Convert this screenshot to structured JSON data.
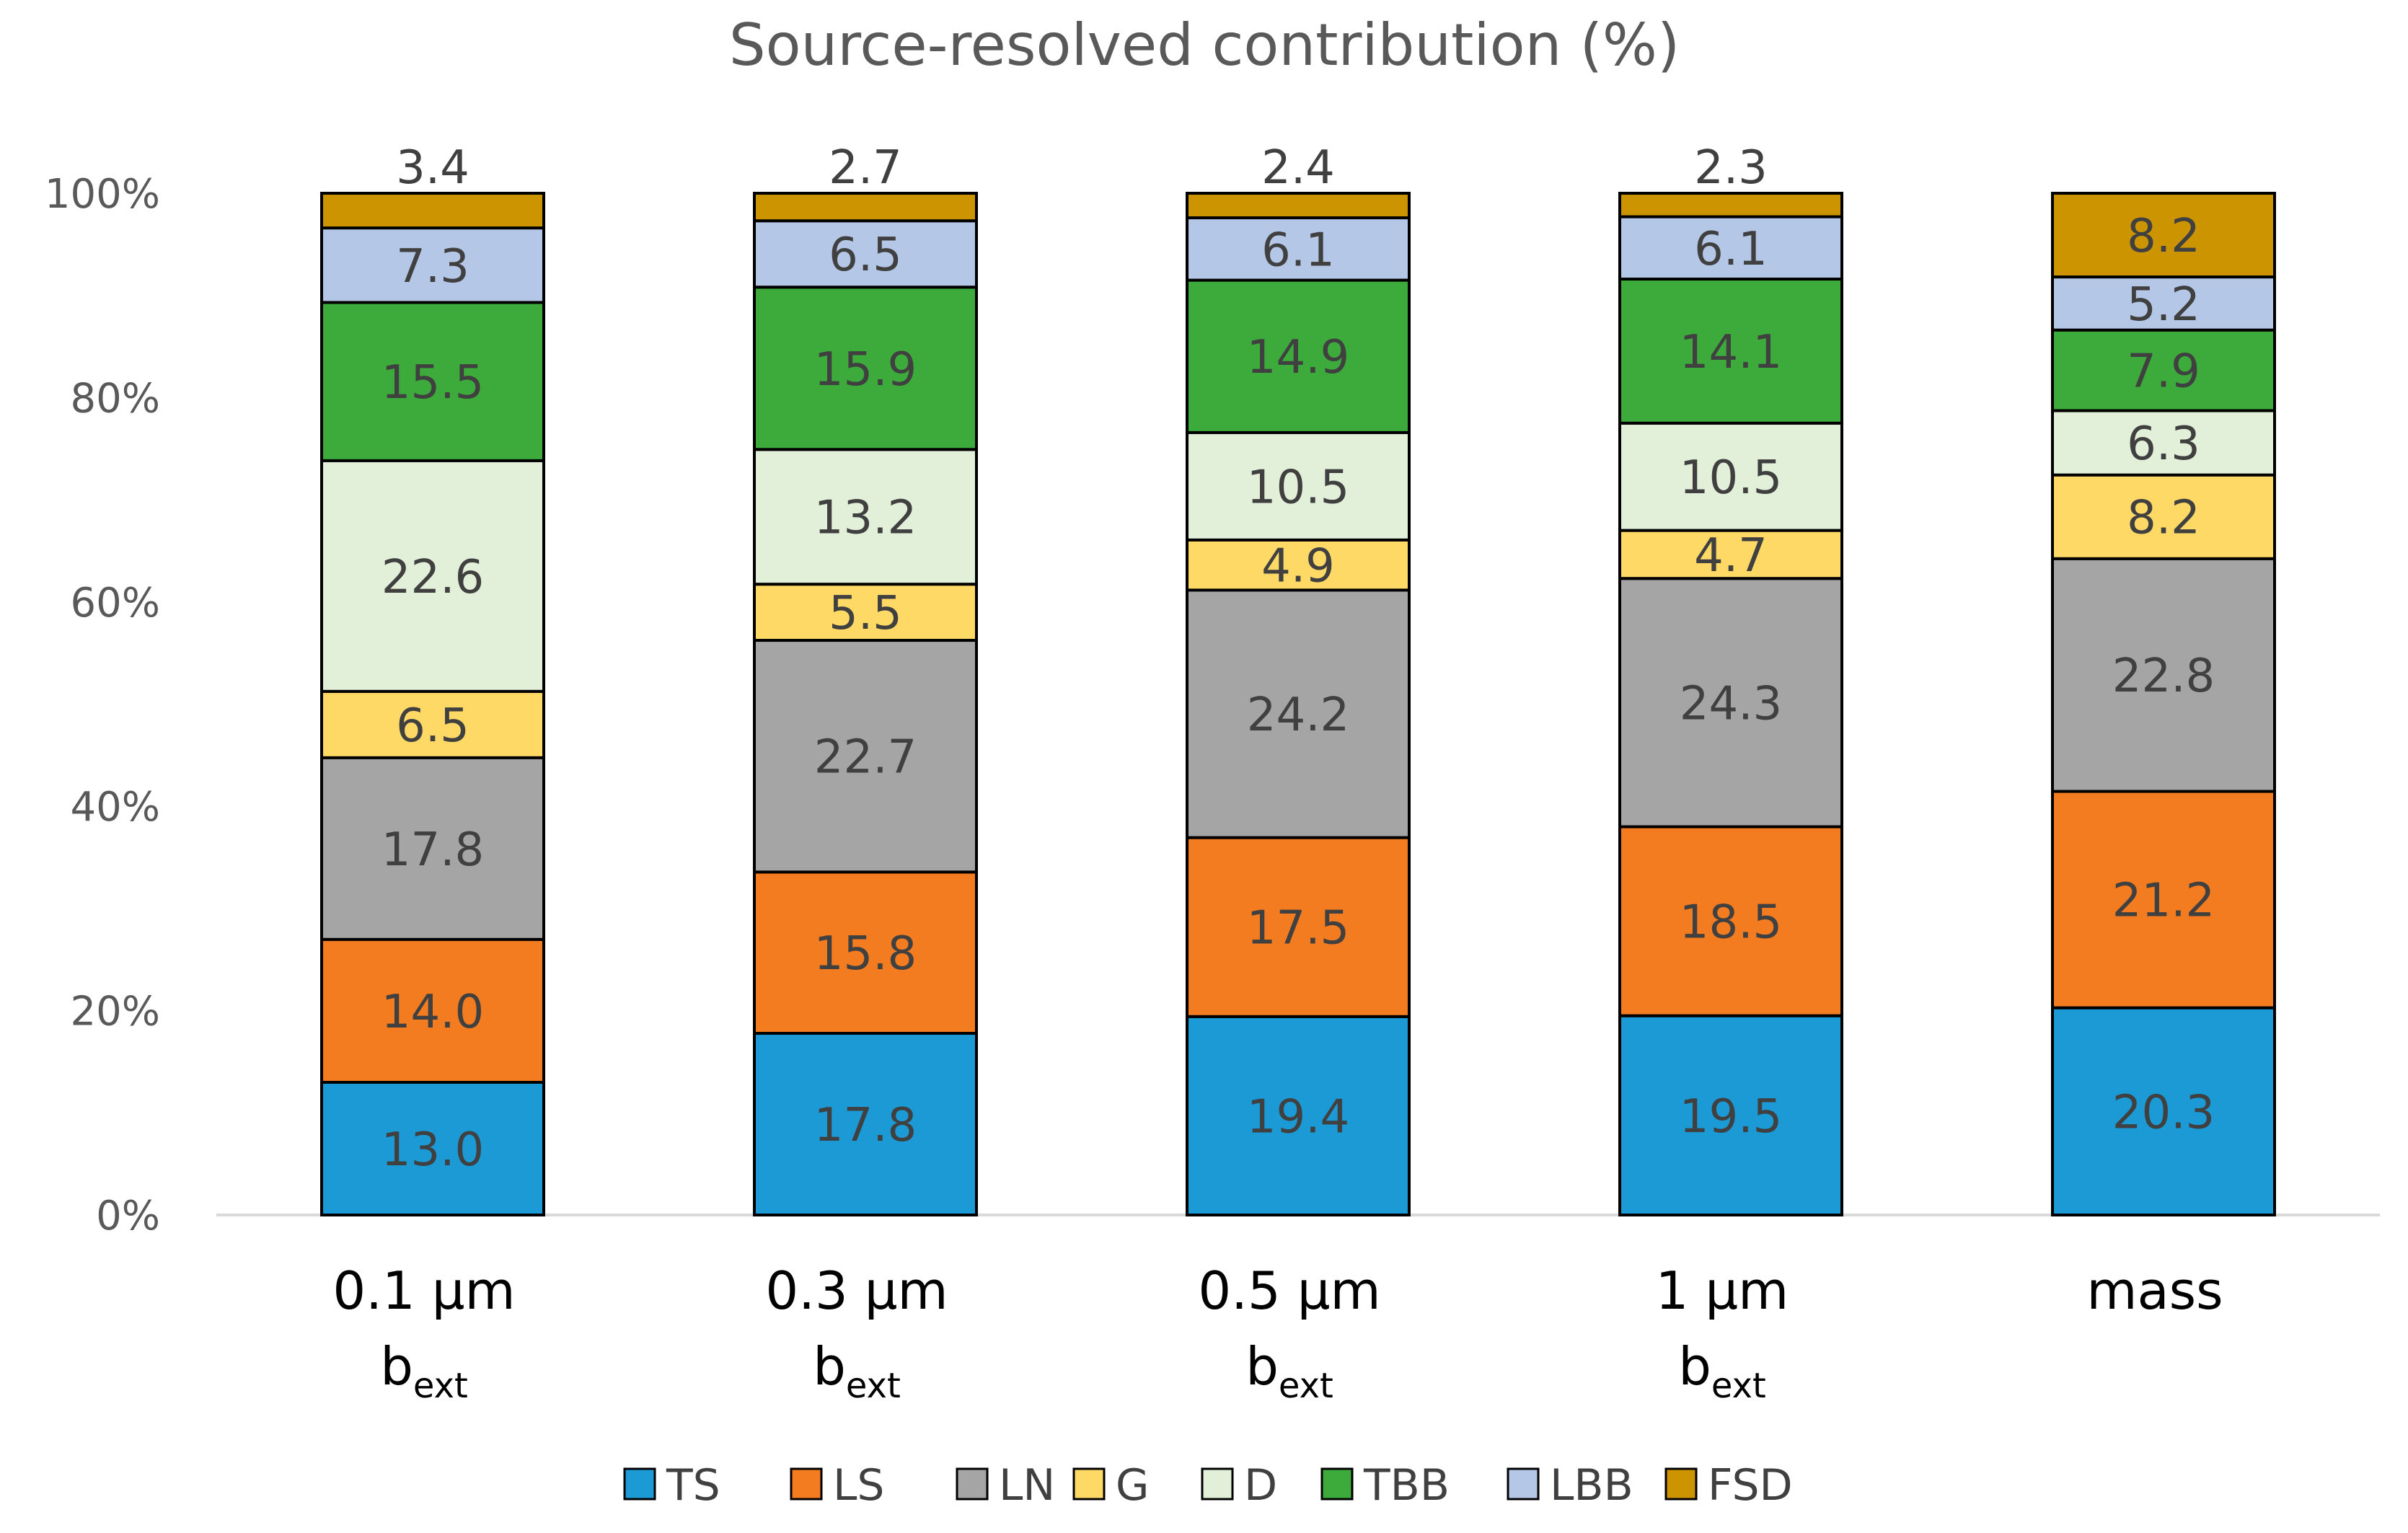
{
  "chart_data": {
    "type": "bar",
    "stacked": true,
    "title": "Source-resolved contribution (%)",
    "xlabel": "",
    "ylabel": "",
    "ylim": [
      0,
      100
    ],
    "y_tick_labels": [
      "0%",
      "20%",
      "40%",
      "60%",
      "80%",
      "100%"
    ],
    "y_tick_values": [
      0,
      20,
      40,
      60,
      80,
      100
    ],
    "grid": false,
    "legend_position": "bottom",
    "categories": [
      {
        "label": "0.1 μm",
        "sub_main": "b",
        "sub_script": "ext"
      },
      {
        "label": "0.3 μm",
        "sub_main": "b",
        "sub_script": "ext"
      },
      {
        "label": "0.5 μm",
        "sub_main": "b",
        "sub_script": "ext"
      },
      {
        "label": "1 μm",
        "sub_main": "b",
        "sub_script": "ext"
      },
      {
        "label": "mass",
        "sub_main": "",
        "sub_script": ""
      }
    ],
    "series": [
      {
        "name": "TS",
        "color": "#1C9AD6",
        "values": [
          13.0,
          17.8,
          19.4,
          19.5,
          20.3
        ],
        "labels": [
          "13.0",
          "17.8",
          "19.4",
          "19.5",
          "20.3"
        ]
      },
      {
        "name": "LS",
        "color": "#F47C20",
        "values": [
          14.0,
          15.8,
          17.5,
          18.5,
          21.2
        ],
        "labels": [
          "14.0",
          "15.8",
          "17.5",
          "18.5",
          "21.2"
        ]
      },
      {
        "name": "LN",
        "color": "#A5A5A5",
        "values": [
          17.8,
          22.7,
          24.2,
          24.3,
          22.8
        ],
        "labels": [
          "17.8",
          "22.7",
          "24.2",
          "24.3",
          "22.8"
        ]
      },
      {
        "name": "G",
        "color": "#FFD966",
        "values": [
          6.5,
          5.5,
          4.9,
          4.7,
          8.2
        ],
        "labels": [
          "6.5",
          "5.5",
          "4.9",
          "4.7",
          "8.2"
        ]
      },
      {
        "name": "D",
        "color": "#E2F0D9",
        "values": [
          22.6,
          13.2,
          10.5,
          10.5,
          6.3
        ],
        "labels": [
          "22.6",
          "13.2",
          "10.5",
          "10.5",
          "6.3"
        ]
      },
      {
        "name": "TBB",
        "color": "#3CAB3C",
        "values": [
          15.5,
          15.9,
          14.9,
          14.1,
          7.9
        ],
        "labels": [
          "15.5",
          "15.9",
          "14.9",
          "14.1",
          "7.9"
        ]
      },
      {
        "name": "LBB",
        "color": "#B4C7E7",
        "values": [
          7.3,
          6.5,
          6.1,
          6.1,
          5.2
        ],
        "labels": [
          "7.3",
          "6.5",
          "6.1",
          "6.1",
          "5.2"
        ]
      },
      {
        "name": "FSD",
        "color": "#CC9400",
        "values": [
          3.4,
          2.7,
          2.4,
          2.3,
          8.2
        ],
        "labels": [
          "3.4",
          "2.7",
          "2.4",
          "2.3",
          "8.2"
        ]
      }
    ],
    "label_above_bar": [
      true,
      true,
      true,
      true,
      false
    ]
  }
}
